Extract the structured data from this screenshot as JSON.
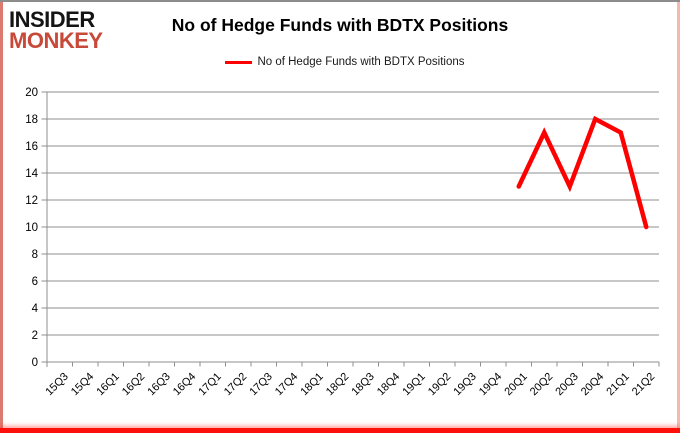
{
  "branding": {
    "logo_line1": "INSIDER",
    "logo_line2": "MONKEY",
    "logo_color_primary": "#141414",
    "logo_color_secondary": "#c8493a"
  },
  "header": {
    "title": "No of Hedge Funds with BDTX Positions"
  },
  "legend": {
    "label": "No of Hedge Funds with BDTX Positions",
    "line_color": "#ff0000"
  },
  "chart_data": {
    "type": "line",
    "title": "No of Hedge Funds with BDTX Positions",
    "categories": [
      "15Q3",
      "15Q4",
      "16Q1",
      "16Q2",
      "16Q3",
      "16Q4",
      "17Q1",
      "17Q2",
      "17Q3",
      "17Q4",
      "18Q1",
      "18Q2",
      "18Q3",
      "18Q4",
      "19Q1",
      "19Q2",
      "19Q3",
      "19Q4",
      "20Q1",
      "20Q2",
      "20Q3",
      "20Q4",
      "21Q1",
      "21Q2"
    ],
    "series": [
      {
        "name": "No of Hedge Funds with BDTX Positions",
        "color": "#ff0000",
        "points": [
          {
            "x": "20Q1",
            "y": 13
          },
          {
            "x": "20Q2",
            "y": 17
          },
          {
            "x": "20Q3",
            "y": 13
          },
          {
            "x": "20Q4",
            "y": 18
          },
          {
            "x": "21Q1",
            "y": 17
          },
          {
            "x": "21Q2",
            "y": 10
          }
        ]
      }
    ],
    "xlabel": "",
    "ylabel": "",
    "ylim": [
      0,
      20
    ],
    "ytick_step": 2,
    "grid": true,
    "gridline_color": "#8f8f8f",
    "legend_position": "top"
  }
}
